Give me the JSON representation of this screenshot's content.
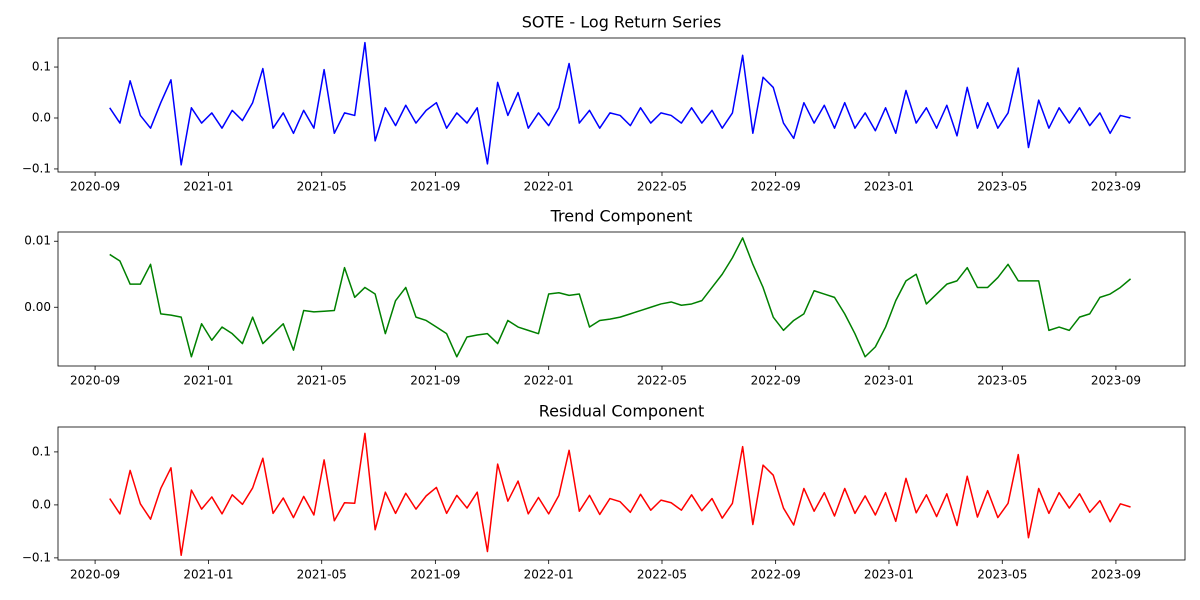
{
  "chart_data": [
    {
      "type": "line",
      "title": "SOTE - Log Return Series",
      "color": "#0000ff",
      "x": [
        2020.71,
        2020.74,
        2020.77,
        2020.8,
        2020.83,
        2020.86,
        2020.89,
        2020.92,
        2020.95,
        2020.98,
        2021.01,
        2021.04,
        2021.07,
        2021.1,
        2021.13,
        2021.16,
        2021.19,
        2021.22,
        2021.25,
        2021.28,
        2021.31,
        2021.34,
        2021.37,
        2021.4,
        2021.43,
        2021.46,
        2021.49,
        2021.52,
        2021.55,
        2021.58,
        2021.61,
        2021.64,
        2021.67,
        2021.7,
        2021.73,
        2021.76,
        2021.79,
        2021.82,
        2021.85,
        2021.88,
        2021.91,
        2021.94,
        2021.97,
        2022.0,
        2022.03,
        2022.06,
        2022.09,
        2022.12,
        2022.15,
        2022.18,
        2022.21,
        2022.24,
        2022.27,
        2022.3,
        2022.33,
        2022.36,
        2022.39,
        2022.42,
        2022.45,
        2022.48,
        2022.51,
        2022.54,
        2022.57,
        2022.6,
        2022.63,
        2022.66,
        2022.69,
        2022.72,
        2022.75,
        2022.78,
        2022.81,
        2022.84,
        2022.87,
        2022.9,
        2022.93,
        2022.96,
        2022.99,
        2023.02,
        2023.05,
        2023.08,
        2023.11,
        2023.14,
        2023.17,
        2023.2,
        2023.23,
        2023.26,
        2023.29,
        2023.32,
        2023.35,
        2023.38,
        2023.41,
        2023.44,
        2023.47,
        2023.5,
        2023.53,
        2023.56,
        2023.59,
        2023.62,
        2023.65,
        2023.68,
        2023.71
      ],
      "values": [
        0.02,
        -0.01,
        0.073,
        0.005,
        -0.02,
        0.03,
        0.075,
        -0.092,
        0.02,
        -0.01,
        0.01,
        -0.02,
        0.015,
        -0.005,
        0.03,
        0.097,
        -0.02,
        0.01,
        -0.03,
        0.015,
        -0.02,
        0.095,
        -0.03,
        0.01,
        0.005,
        0.148,
        -0.045,
        0.02,
        -0.015,
        0.025,
        -0.01,
        0.015,
        0.03,
        -0.02,
        0.01,
        -0.01,
        0.02,
        -0.09,
        0.07,
        0.005,
        0.05,
        -0.02,
        0.01,
        -0.015,
        0.02,
        0.107,
        -0.01,
        0.015,
        -0.02,
        0.01,
        0.005,
        -0.015,
        0.02,
        -0.01,
        0.01,
        0.005,
        -0.01,
        0.02,
        -0.01,
        0.015,
        -0.02,
        0.01,
        0.123,
        -0.03,
        0.08,
        0.06,
        -0.01,
        -0.04,
        0.03,
        -0.01,
        0.025,
        -0.02,
        0.03,
        -0.02,
        0.01,
        -0.025,
        0.02,
        -0.03,
        0.054,
        -0.01,
        0.02,
        -0.02,
        0.025,
        -0.035,
        0.06,
        -0.02,
        0.03,
        -0.02,
        0.01,
        0.098,
        -0.058,
        0.035,
        -0.02,
        0.02,
        -0.01,
        0.02,
        -0.015,
        0.01,
        -0.03,
        0.005,
        0.0
      ],
      "xlim": [
        2020.558,
        2023.87
      ],
      "xticks": [
        {
          "value": 2020.667,
          "label": "2020-09"
        },
        {
          "value": 2021.0,
          "label": "2021-01"
        },
        {
          "value": 2021.333,
          "label": "2021-05"
        },
        {
          "value": 2021.667,
          "label": "2021-09"
        },
        {
          "value": 2022.0,
          "label": "2022-01"
        },
        {
          "value": 2022.333,
          "label": "2022-05"
        },
        {
          "value": 2022.667,
          "label": "2022-09"
        },
        {
          "value": 2023.0,
          "label": "2023-01"
        },
        {
          "value": 2023.333,
          "label": "2023-05"
        },
        {
          "value": 2023.667,
          "label": "2023-09"
        }
      ],
      "ylim": [
        -0.106,
        0.157
      ],
      "yticks": [
        {
          "value": -0.1,
          "label": "−0.1"
        },
        {
          "value": 0.0,
          "label": "0.0"
        },
        {
          "value": 0.1,
          "label": "0.1"
        }
      ]
    },
    {
      "type": "line",
      "title": "Trend Component",
      "color": "#008000",
      "x": [
        2020.71,
        2020.74,
        2020.77,
        2020.8,
        2020.83,
        2020.86,
        2020.89,
        2020.92,
        2020.95,
        2020.98,
        2021.01,
        2021.04,
        2021.07,
        2021.1,
        2021.13,
        2021.16,
        2021.19,
        2021.22,
        2021.25,
        2021.28,
        2021.31,
        2021.34,
        2021.37,
        2021.4,
        2021.43,
        2021.46,
        2021.49,
        2021.52,
        2021.55,
        2021.58,
        2021.61,
        2021.64,
        2021.67,
        2021.7,
        2021.73,
        2021.76,
        2021.79,
        2021.82,
        2021.85,
        2021.88,
        2021.91,
        2021.94,
        2021.97,
        2022.0,
        2022.03,
        2022.06,
        2022.09,
        2022.12,
        2022.15,
        2022.18,
        2022.21,
        2022.24,
        2022.27,
        2022.3,
        2022.33,
        2022.36,
        2022.39,
        2022.42,
        2022.45,
        2022.48,
        2022.51,
        2022.54,
        2022.57,
        2022.6,
        2022.63,
        2022.66,
        2022.69,
        2022.72,
        2022.75,
        2022.78,
        2022.81,
        2022.84,
        2022.87,
        2022.9,
        2022.93,
        2022.96,
        2022.99,
        2023.02,
        2023.05,
        2023.08,
        2023.11,
        2023.14,
        2023.17,
        2023.2,
        2023.23,
        2023.26,
        2023.29,
        2023.32,
        2023.35,
        2023.38,
        2023.41,
        2023.44,
        2023.47,
        2023.5,
        2023.53,
        2023.56,
        2023.59,
        2023.62,
        2023.65,
        2023.68,
        2023.71
      ],
      "values": [
        0.008,
        0.007,
        0.0035,
        0.0035,
        0.0065,
        -0.001,
        -0.0012,
        -0.0015,
        -0.0075,
        -0.0025,
        -0.005,
        -0.003,
        -0.004,
        -0.0055,
        -0.0015,
        -0.0055,
        -0.004,
        -0.0025,
        -0.0065,
        -0.0005,
        -0.0007,
        -0.0006,
        -0.0005,
        0.006,
        0.0015,
        0.003,
        0.002,
        -0.004,
        0.001,
        0.003,
        -0.0015,
        -0.002,
        -0.003,
        -0.004,
        -0.0075,
        -0.0045,
        -0.0042,
        -0.004,
        -0.0055,
        -0.002,
        -0.003,
        -0.0035,
        -0.004,
        0.002,
        0.0022,
        0.0018,
        0.002,
        -0.003,
        -0.002,
        -0.0018,
        -0.0015,
        -0.001,
        -0.0005,
        0.0,
        0.0005,
        0.0008,
        0.0003,
        0.0005,
        0.001,
        0.003,
        0.005,
        0.0075,
        0.0105,
        0.0065,
        0.003,
        -0.0015,
        -0.0035,
        -0.002,
        -0.001,
        0.0025,
        0.002,
        0.0015,
        -0.001,
        -0.004,
        -0.0075,
        -0.006,
        -0.003,
        0.001,
        0.004,
        0.005,
        0.0005,
        0.002,
        0.0035,
        0.004,
        0.006,
        0.003,
        0.003,
        0.0045,
        0.0065,
        0.004,
        0.004,
        0.004,
        -0.0035,
        -0.003,
        -0.0035,
        -0.0015,
        -0.001,
        0.0015,
        0.002,
        0.003,
        0.0043
      ],
      "xlim": [
        2020.558,
        2023.87
      ],
      "xticks": [
        {
          "value": 2020.667,
          "label": "2020-09"
        },
        {
          "value": 2021.0,
          "label": "2021-01"
        },
        {
          "value": 2021.333,
          "label": "2021-05"
        },
        {
          "value": 2021.667,
          "label": "2021-09"
        },
        {
          "value": 2022.0,
          "label": "2022-01"
        },
        {
          "value": 2022.333,
          "label": "2022-05"
        },
        {
          "value": 2022.667,
          "label": "2022-09"
        },
        {
          "value": 2023.0,
          "label": "2023-01"
        },
        {
          "value": 2023.333,
          "label": "2023-05"
        },
        {
          "value": 2023.667,
          "label": "2023-09"
        }
      ],
      "ylim": [
        -0.0089,
        0.0114
      ],
      "yticks": [
        {
          "value": 0.0,
          "label": "0.00"
        },
        {
          "value": 0.01,
          "label": "0.01"
        }
      ]
    },
    {
      "type": "line",
      "title": "Residual Component",
      "color": "#ff0000",
      "x": [
        2020.71,
        2020.74,
        2020.77,
        2020.8,
        2020.83,
        2020.86,
        2020.89,
        2020.92,
        2020.95,
        2020.98,
        2021.01,
        2021.04,
        2021.07,
        2021.1,
        2021.13,
        2021.16,
        2021.19,
        2021.22,
        2021.25,
        2021.28,
        2021.31,
        2021.34,
        2021.37,
        2021.4,
        2021.43,
        2021.46,
        2021.49,
        2021.52,
        2021.55,
        2021.58,
        2021.61,
        2021.64,
        2021.67,
        2021.7,
        2021.73,
        2021.76,
        2021.79,
        2021.82,
        2021.85,
        2021.88,
        2021.91,
        2021.94,
        2021.97,
        2022.0,
        2022.03,
        2022.06,
        2022.09,
        2022.12,
        2022.15,
        2022.18,
        2022.21,
        2022.24,
        2022.27,
        2022.3,
        2022.33,
        2022.36,
        2022.39,
        2022.42,
        2022.45,
        2022.48,
        2022.51,
        2022.54,
        2022.57,
        2022.6,
        2022.63,
        2022.66,
        2022.69,
        2022.72,
        2022.75,
        2022.78,
        2022.81,
        2022.84,
        2022.87,
        2022.9,
        2022.93,
        2022.96,
        2022.99,
        2023.02,
        2023.05,
        2023.08,
        2023.11,
        2023.14,
        2023.17,
        2023.2,
        2023.23,
        2023.26,
        2023.29,
        2023.32,
        2023.35,
        2023.38,
        2023.41,
        2023.44,
        2023.47,
        2023.5,
        2023.53,
        2023.56,
        2023.59,
        2023.62,
        2023.65,
        2023.68,
        2023.71
      ],
      "values": [
        0.012,
        -0.017,
        0.065,
        0.002,
        -0.027,
        0.031,
        0.07,
        -0.095,
        0.028,
        -0.008,
        0.015,
        -0.017,
        0.019,
        0.001,
        0.032,
        0.088,
        -0.016,
        0.013,
        -0.024,
        0.016,
        -0.019,
        0.085,
        -0.03,
        0.004,
        0.003,
        0.135,
        -0.047,
        0.024,
        -0.016,
        0.022,
        -0.008,
        0.017,
        0.033,
        -0.016,
        0.018,
        -0.006,
        0.024,
        -0.088,
        0.077,
        0.007,
        0.045,
        -0.017,
        0.014,
        -0.017,
        0.018,
        0.103,
        -0.012,
        0.018,
        -0.018,
        0.012,
        0.006,
        -0.014,
        0.02,
        -0.01,
        0.009,
        0.004,
        -0.01,
        0.019,
        -0.011,
        0.012,
        -0.025,
        0.003,
        0.11,
        -0.037,
        0.075,
        0.056,
        -0.006,
        -0.038,
        0.031,
        -0.012,
        0.023,
        -0.021,
        0.031,
        -0.016,
        0.017,
        -0.019,
        0.023,
        -0.031,
        0.05,
        -0.015,
        0.019,
        -0.022,
        0.021,
        -0.039,
        0.054,
        -0.023,
        0.027,
        -0.024,
        0.003,
        0.095,
        -0.062,
        0.031,
        -0.016,
        0.023,
        -0.006,
        0.021,
        -0.014,
        0.008,
        -0.032,
        0.002,
        -0.004
      ],
      "xlim": [
        2020.558,
        2023.87
      ],
      "xticks": [
        {
          "value": 2020.667,
          "label": "2020-09"
        },
        {
          "value": 2021.0,
          "label": "2021-01"
        },
        {
          "value": 2021.333,
          "label": "2021-05"
        },
        {
          "value": 2021.667,
          "label": "2021-09"
        },
        {
          "value": 2022.0,
          "label": "2022-01"
        },
        {
          "value": 2022.333,
          "label": "2022-05"
        },
        {
          "value": 2022.667,
          "label": "2022-09"
        },
        {
          "value": 2023.0,
          "label": "2023-01"
        },
        {
          "value": 2023.333,
          "label": "2023-05"
        },
        {
          "value": 2023.667,
          "label": "2023-09"
        }
      ],
      "ylim": [
        -0.104,
        0.147
      ],
      "yticks": [
        {
          "value": -0.1,
          "label": "−0.1"
        },
        {
          "value": 0.0,
          "label": "0.0"
        },
        {
          "value": 0.1,
          "label": "0.1"
        }
      ]
    }
  ]
}
